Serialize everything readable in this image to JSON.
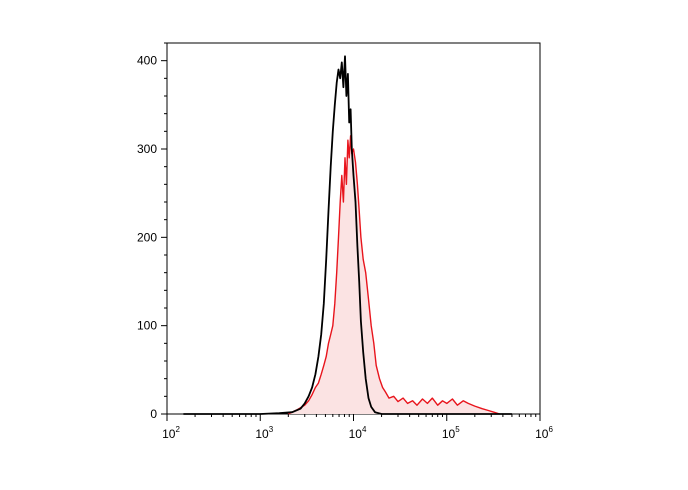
{
  "chart_data": {
    "type": "area",
    "title": "",
    "xlabel": "",
    "ylabel": "",
    "x_scale": "log",
    "xlim": [
      100,
      1000000
    ],
    "ylim": [
      0,
      420
    ],
    "x_ticks": [
      {
        "base": "10",
        "exp": "2"
      },
      {
        "base": "10",
        "exp": "3"
      },
      {
        "base": "10",
        "exp": "4"
      },
      {
        "base": "10",
        "exp": "5"
      },
      {
        "base": "10",
        "exp": "6"
      }
    ],
    "y_ticks": [
      0,
      100,
      200,
      300,
      400
    ],
    "grid": false,
    "legend": "none",
    "colors": {
      "black_series": "#000000",
      "red_series": "#e8141c",
      "red_fill": "#fbe3e3"
    },
    "series": [
      {
        "color": "#000000",
        "filled": false,
        "points": [
          [
            150,
            0
          ],
          [
            1000,
            0
          ],
          [
            1600,
            1
          ],
          [
            2200,
            2
          ],
          [
            2700,
            6
          ],
          [
            3000,
            12
          ],
          [
            3300,
            20
          ],
          [
            3600,
            30
          ],
          [
            3900,
            45
          ],
          [
            4200,
            65
          ],
          [
            4500,
            90
          ],
          [
            4800,
            125
          ],
          [
            5100,
            175
          ],
          [
            5400,
            230
          ],
          [
            5700,
            280
          ],
          [
            6000,
            320
          ],
          [
            6300,
            350
          ],
          [
            6600,
            375
          ],
          [
            6900,
            390
          ],
          [
            7200,
            380
          ],
          [
            7500,
            398
          ],
          [
            7800,
            370
          ],
          [
            8100,
            405
          ],
          [
            8400,
            360
          ],
          [
            8700,
            385
          ],
          [
            9000,
            330
          ],
          [
            9300,
            345
          ],
          [
            9600,
            300
          ],
          [
            10000,
            270
          ],
          [
            10500,
            240
          ],
          [
            11000,
            190
          ],
          [
            11500,
            150
          ],
          [
            12000,
            105
          ],
          [
            12700,
            70
          ],
          [
            13500,
            40
          ],
          [
            14500,
            18
          ],
          [
            15500,
            8
          ],
          [
            17000,
            2
          ],
          [
            20000,
            0
          ],
          [
            500000,
            0
          ]
        ]
      },
      {
        "color": "#e8141c",
        "filled": true,
        "points": [
          [
            2000,
            0
          ],
          [
            2500,
            5
          ],
          [
            3000,
            10
          ],
          [
            3300,
            15
          ],
          [
            3600,
            22
          ],
          [
            3900,
            30
          ],
          [
            4200,
            35
          ],
          [
            4500,
            45
          ],
          [
            4800,
            55
          ],
          [
            5100,
            65
          ],
          [
            5400,
            80
          ],
          [
            5700,
            90
          ],
          [
            6000,
            100
          ],
          [
            6300,
            125
          ],
          [
            6600,
            160
          ],
          [
            6900,
            200
          ],
          [
            7200,
            240
          ],
          [
            7500,
            270
          ],
          [
            7800,
            240
          ],
          [
            8100,
            290
          ],
          [
            8400,
            260
          ],
          [
            8700,
            310
          ],
          [
            9000,
            290
          ],
          [
            9300,
            315
          ],
          [
            9600,
            295
          ],
          [
            10000,
            300
          ],
          [
            10500,
            285
          ],
          [
            11000,
            260
          ],
          [
            11500,
            230
          ],
          [
            12000,
            200
          ],
          [
            12700,
            175
          ],
          [
            13500,
            160
          ],
          [
            14500,
            130
          ],
          [
            15500,
            100
          ],
          [
            16500,
            80
          ],
          [
            17500,
            55
          ],
          [
            19000,
            40
          ],
          [
            20500,
            30
          ],
          [
            22000,
            25
          ],
          [
            24000,
            18
          ],
          [
            27000,
            20
          ],
          [
            30000,
            14
          ],
          [
            34000,
            18
          ],
          [
            38000,
            12
          ],
          [
            43000,
            15
          ],
          [
            48000,
            10
          ],
          [
            55000,
            17
          ],
          [
            62000,
            12
          ],
          [
            70000,
            18
          ],
          [
            80000,
            10
          ],
          [
            90000,
            15
          ],
          [
            100000,
            12
          ],
          [
            115000,
            17
          ],
          [
            130000,
            10
          ],
          [
            150000,
            15
          ],
          [
            170000,
            12
          ],
          [
            200000,
            9
          ],
          [
            240000,
            6
          ],
          [
            280000,
            4
          ],
          [
            320000,
            2
          ],
          [
            370000,
            0
          ]
        ]
      }
    ]
  }
}
